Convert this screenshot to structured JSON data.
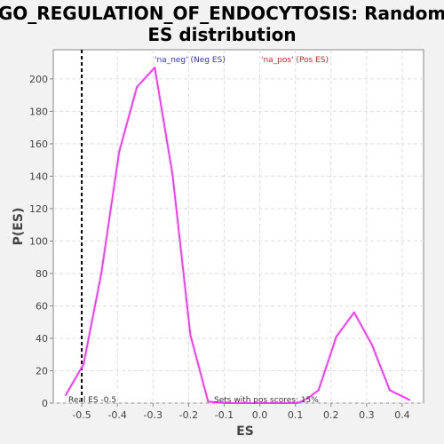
{
  "chart_data": {
    "type": "line",
    "title_line1": "GO_REGULATION_OF_ENDOCYTOSIS: Random",
    "title_line2": "ES distribution",
    "xlabel": "ES",
    "ylabel": "P(ES)",
    "xlim": [
      -0.58,
      0.46
    ],
    "ylim": [
      0,
      218
    ],
    "xticks": [
      -0.5,
      -0.4,
      -0.3,
      -0.2,
      -0.1,
      0.0,
      0.1,
      0.2,
      0.3,
      0.4
    ],
    "xtick_labels": [
      "-0.5",
      "-0.4",
      "-0.3",
      "-0.2",
      "-0.1",
      "0.0",
      "0.1",
      "0.2",
      "0.3",
      "0.4"
    ],
    "yticks": [
      0,
      20,
      40,
      60,
      80,
      100,
      120,
      140,
      160,
      180,
      200
    ],
    "ytick_labels": [
      "0",
      "20",
      "40",
      "60",
      "80",
      "100",
      "120",
      "140",
      "160",
      "180",
      "200"
    ],
    "grid": true,
    "series": [
      {
        "color": "#ff33ff",
        "x": [
          -0.545,
          -0.495,
          -0.445,
          -0.395,
          -0.345,
          -0.295,
          -0.245,
          -0.195,
          -0.145,
          -0.095,
          -0.045,
          0.005,
          0.055,
          0.105,
          0.135,
          0.165,
          0.215,
          0.265,
          0.315,
          0.365,
          0.42
        ],
        "y": [
          5,
          24,
          80,
          155,
          195,
          207,
          141,
          42,
          1,
          0,
          0,
          0,
          0,
          0,
          3,
          8,
          41,
          56,
          36,
          8,
          2
        ]
      }
    ],
    "real_es_line": {
      "x": -0.5,
      "color": "#000000"
    },
    "legend": [
      {
        "label": "'na_neg' (Neg ES)",
        "color": "#3333cc"
      },
      {
        "label": "'na_pos' (Pos ES)",
        "color": "#dd2222"
      }
    ],
    "annotations": {
      "real_es": "Real ES -0.5",
      "pos_scores": "Sets with pos scores: 15%"
    }
  }
}
